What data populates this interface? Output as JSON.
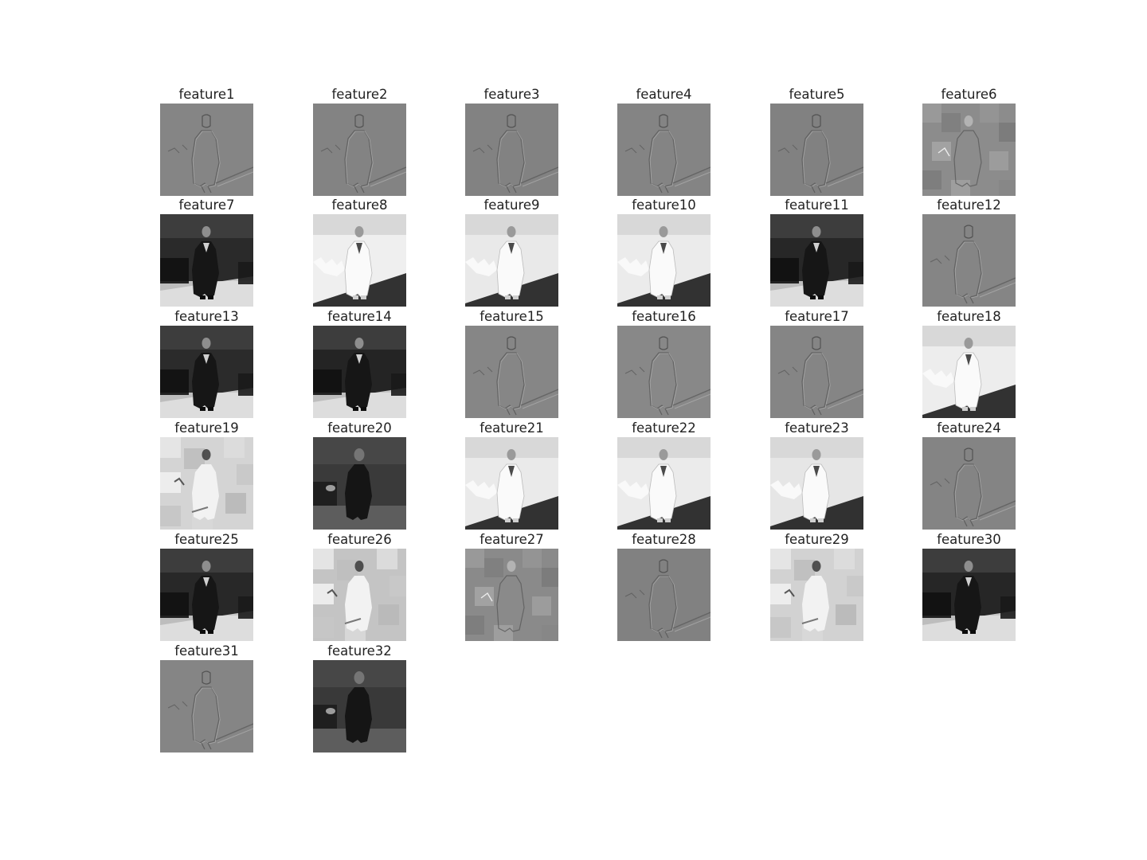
{
  "figure": {
    "panels": [
      {
        "title": "feature1",
        "style": "edge",
        "tone": "#858585"
      },
      {
        "title": "feature2",
        "style": "edge",
        "tone": "#838383"
      },
      {
        "title": "feature3",
        "style": "edge",
        "tone": "#828282"
      },
      {
        "title": "feature4",
        "style": "edge",
        "tone": "#848484"
      },
      {
        "title": "feature5",
        "style": "edge",
        "tone": "#818181"
      },
      {
        "title": "feature6",
        "style": "blocky",
        "tone": "#8c8c8c"
      },
      {
        "title": "feature7",
        "style": "dark",
        "tone": "#2a2a2a"
      },
      {
        "title": "feature8",
        "style": "light",
        "tone": "#efefef"
      },
      {
        "title": "feature9",
        "style": "light",
        "tone": "#e9e9e9"
      },
      {
        "title": "feature10",
        "style": "light",
        "tone": "#ebebeb"
      },
      {
        "title": "feature11",
        "style": "dark",
        "tone": "#272727"
      },
      {
        "title": "feature12",
        "style": "edge",
        "tone": "#858585"
      },
      {
        "title": "feature13",
        "style": "dark",
        "tone": "#2b2b2b"
      },
      {
        "title": "feature14",
        "style": "dark",
        "tone": "#242424"
      },
      {
        "title": "feature15",
        "style": "edge",
        "tone": "#868686"
      },
      {
        "title": "feature16",
        "style": "edge",
        "tone": "#888888"
      },
      {
        "title": "feature17",
        "style": "edge",
        "tone": "#858585"
      },
      {
        "title": "feature18",
        "style": "light",
        "tone": "#ededed"
      },
      {
        "title": "feature19",
        "style": "blocky-light",
        "tone": "#d4d4d4"
      },
      {
        "title": "feature20",
        "style": "blurry-dark",
        "tone": "#3a3a3a"
      },
      {
        "title": "feature21",
        "style": "light",
        "tone": "#eaeaea"
      },
      {
        "title": "feature22",
        "style": "light",
        "tone": "#ebebeb"
      },
      {
        "title": "feature23",
        "style": "light",
        "tone": "#e6e6e6"
      },
      {
        "title": "feature24",
        "style": "edge",
        "tone": "#848484"
      },
      {
        "title": "feature25",
        "style": "dark",
        "tone": "#282828"
      },
      {
        "title": "feature26",
        "style": "blocky-light",
        "tone": "#c4c4c4"
      },
      {
        "title": "feature27",
        "style": "blocky",
        "tone": "#8a8a8a"
      },
      {
        "title": "feature28",
        "style": "edge",
        "tone": "#818181"
      },
      {
        "title": "feature29",
        "style": "blocky-light",
        "tone": "#d2d2d2"
      },
      {
        "title": "feature30",
        "style": "dark",
        "tone": "#262626"
      },
      {
        "title": "feature31",
        "style": "edge",
        "tone": "#858585"
      },
      {
        "title": "feature32",
        "style": "blurry-dark",
        "tone": "#393939"
      }
    ]
  }
}
